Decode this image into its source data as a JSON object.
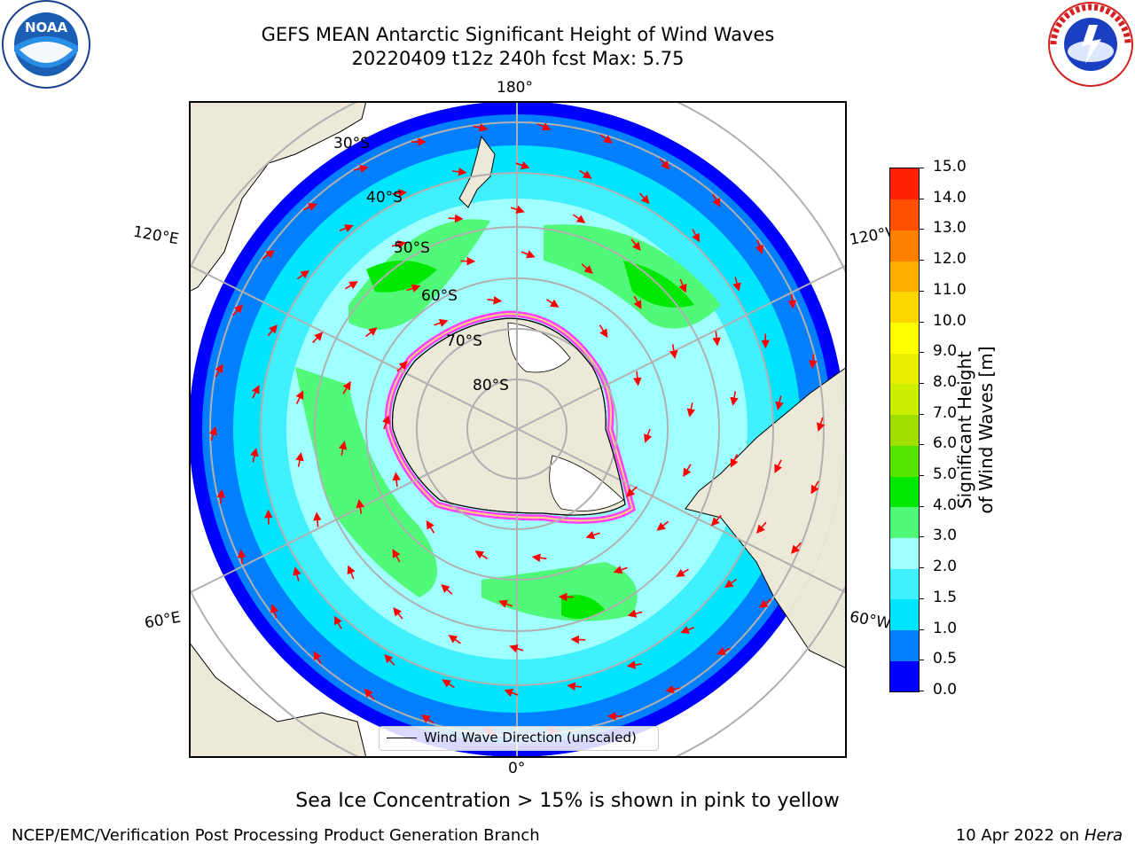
{
  "header": {
    "title_line1": "GEFS MEAN Antarctic Significant Height of Wind Waves",
    "title_line2": "20220409 t12z 240h fcst   Max: 5.75"
  },
  "logos": {
    "left": {
      "icon": "noaa-logo",
      "text": "NOAA",
      "ring_text": "NATIONAL OCEANIC AND ATMOSPHERIC ADMINISTRATION · U.S. DEPARTMENT OF COMMERCE"
    },
    "right": {
      "icon": "national-weather-service-logo",
      "ring_text": "NATIONAL WEATHER SERVICE"
    }
  },
  "map": {
    "longitude_labels": {
      "top": "180°",
      "bottom": "0°",
      "upper_left": "120°E",
      "lower_left": "60°E",
      "upper_right": "120°W",
      "lower_right": "60°W"
    },
    "latitude_labels": [
      "30°S",
      "40°S",
      "50°S",
      "60°S",
      "70°S",
      "80°S"
    ],
    "legend_label": "Wind Wave Direction (unscaled)",
    "arrow_color": "#ff0000"
  },
  "colorbar": {
    "title": "Significant Height of Wind Waves [m]",
    "ticks": [
      "0.0",
      "0.5",
      "1.0",
      "1.5",
      "2.0",
      "3.0",
      "4.0",
      "5.0",
      "6.0",
      "7.0",
      "8.0",
      "9.0",
      "10.0",
      "11.0",
      "12.0",
      "13.0",
      "14.0",
      "15.0"
    ],
    "colors": [
      "#0000ff",
      "#0080ff",
      "#00e5ff",
      "#40f0ff",
      "#a0ffff",
      "#50fa78",
      "#00e800",
      "#55e600",
      "#a0e000",
      "#ccee00",
      "#e8f000",
      "#ffff00",
      "#ffd700",
      "#ffae00",
      "#ff8000",
      "#ff5000",
      "#ff2000"
    ]
  },
  "caption": "Sea Ice Concentration > 15% is shown in pink to yellow",
  "footer": {
    "left": "NCEP/EMC/Verification Post Processing Product Generation Branch",
    "right_date": "10 Apr 2022 on ",
    "right_host": "Hera"
  }
}
